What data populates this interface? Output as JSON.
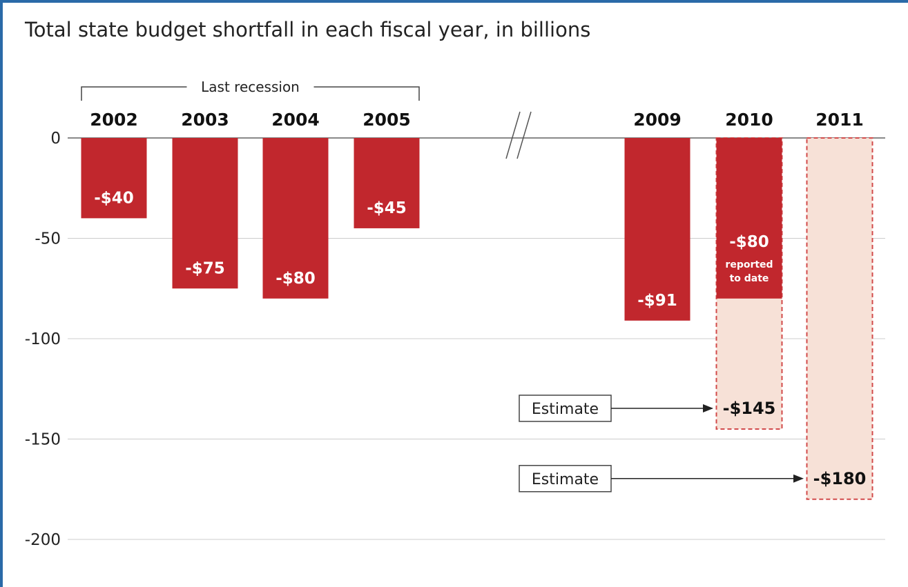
{
  "title": "Total state budget shortfall in each fiscal year, in billions",
  "chart_data": {
    "type": "bar",
    "title": "Total state budget shortfall in each fiscal year, in billions",
    "categories": [
      "2002",
      "2003",
      "2004",
      "2005",
      "2009",
      "2010",
      "2011"
    ],
    "values": [
      -40,
      -75,
      -80,
      -45,
      -91,
      -80,
      null
    ],
    "value_labels": [
      "-$40",
      "-$75",
      "-$80",
      "-$45",
      "-$91",
      "-$80",
      ""
    ],
    "estimates": [
      {
        "category": "2010",
        "value": -145,
        "label": "-$145",
        "box_label": "Estimate"
      },
      {
        "category": "2011",
        "value": -180,
        "label": "-$180",
        "box_label": "Estimate"
      }
    ],
    "bar_notes": [
      {
        "category": "2010",
        "lines": [
          "reported",
          "to date"
        ]
      }
    ],
    "group_annotation": {
      "label": "Last recession",
      "categories": [
        "2002",
        "2003",
        "2004",
        "2005"
      ]
    },
    "axis_break_between": [
      "2005",
      "2009"
    ],
    "ylim": [
      -200,
      0
    ],
    "yticks": [
      0,
      -50,
      -100,
      -150,
      -200
    ],
    "grid": true,
    "xlabel": "",
    "ylabel": "",
    "colors": {
      "bar": "#c1272d",
      "estimate_fill": "#f7e1d7",
      "estimate_border": "#d24a4a",
      "grid": "#cccccc",
      "axis": "#888888"
    }
  }
}
